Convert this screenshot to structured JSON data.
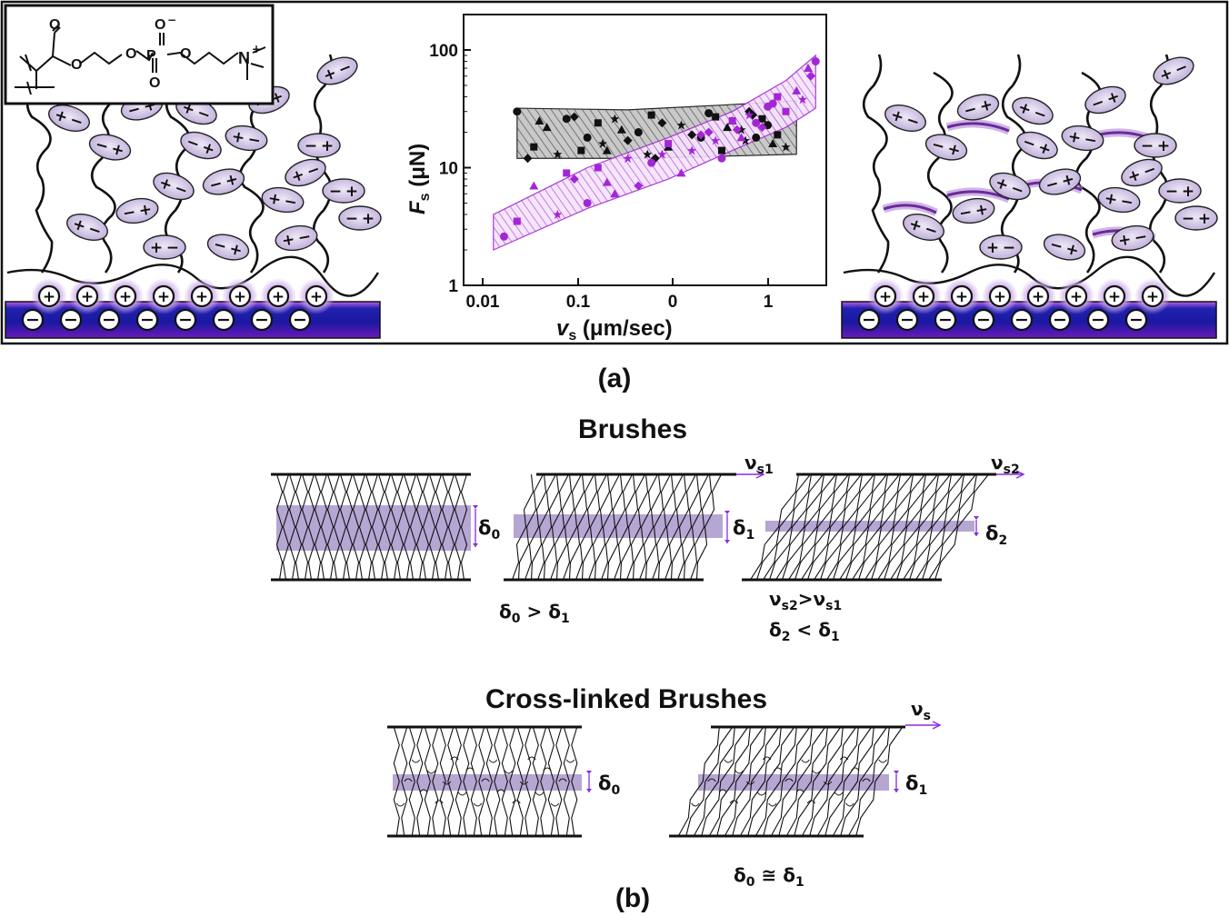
{
  "colors": {
    "purple": "#9b1fc8",
    "lavender": "#b7a3d3",
    "substrate_top": "#1a1aa0",
    "substrate_bottom": "#7a1ab8",
    "gray_hatch": "#8a8a8a",
    "ink": "#111111"
  },
  "panel_a": {
    "label": "(a)",
    "structure_label": "N",
    "charge_plus": "+",
    "charge_minus": "−",
    "oxygen_label": "O",
    "phosphorus_label": "P"
  },
  "chart_data": {
    "type": "scatter",
    "xlabel": "v",
    "xlabel_sub": "s",
    "xlabel_unit": " (μm/sec)",
    "ylabel": "F",
    "ylabel_sub": "s",
    "ylabel_unit": " (μN)",
    "x_scale": "log",
    "y_scale": "log",
    "x_ticks": [
      "0.01",
      "0.1",
      "0",
      "1"
    ],
    "y_ticks": [
      "1",
      "10",
      "100"
    ],
    "xlim": [
      0.006,
      3
    ],
    "ylim": [
      1,
      200
    ],
    "series": [
      {
        "color": "#111111",
        "hatch": "gray",
        "band": {
          "upper": [
            [
              0.015,
              32
            ],
            [
              0.1,
              31
            ],
            [
              0.5,
              34
            ],
            [
              1.8,
              37
            ]
          ],
          "lower": [
            [
              0.015,
              12
            ],
            [
              0.1,
              12
            ],
            [
              0.5,
              12.5
            ],
            [
              1.8,
              13
            ]
          ]
        },
        "x": [
          0.015,
          0.02,
          0.025,
          0.03,
          0.04,
          0.05,
          0.06,
          0.07,
          0.08,
          0.1,
          0.12,
          0.15,
          0.2,
          0.25,
          0.3,
          0.4,
          0.5,
          0.6,
          0.7,
          0.8,
          0.9,
          1.0,
          1.2,
          1.5,
          0.018,
          0.035,
          0.045,
          0.09,
          0.14,
          0.18,
          0.35,
          0.45,
          0.55,
          0.75,
          0.85,
          1.1,
          1.3,
          0.022,
          0.065,
          0.16
        ],
        "y": [
          30,
          15,
          22,
          13,
          27,
          18,
          24,
          14,
          26,
          17,
          20,
          28,
          15,
          23,
          19,
          29,
          14,
          25,
          21,
          30,
          18,
          26,
          16,
          15,
          12,
          26,
          14,
          21,
          13,
          24,
          18,
          27,
          22,
          17,
          28,
          23,
          19,
          25,
          16,
          12
        ]
      },
      {
        "color": "#a326d6",
        "hatch": "purple",
        "band": {
          "upper": [
            [
              0.01,
              4
            ],
            [
              0.05,
              10
            ],
            [
              0.2,
              18
            ],
            [
              0.6,
              30
            ],
            [
              1.5,
              55
            ],
            [
              2.5,
              90
            ]
          ],
          "lower": [
            [
              0.01,
              2
            ],
            [
              0.05,
              4.5
            ],
            [
              0.2,
              8
            ],
            [
              0.6,
              14
            ],
            [
              1.5,
              22
            ],
            [
              2.5,
              32
            ]
          ]
        },
        "x": [
          0.012,
          0.015,
          0.02,
          0.03,
          0.04,
          0.05,
          0.06,
          0.08,
          0.1,
          0.12,
          0.15,
          0.2,
          0.25,
          0.3,
          0.4,
          0.5,
          0.6,
          0.7,
          0.8,
          1.0,
          1.2,
          1.5,
          1.8,
          2.0,
          2.3,
          2.5,
          0.035,
          0.07,
          0.18,
          0.35,
          0.9,
          1.3,
          2.2,
          0.45,
          0.65,
          1.1
        ],
        "y": [
          2.6,
          3.5,
          7,
          4,
          8,
          5,
          10,
          6,
          12,
          7,
          11,
          16,
          9,
          14,
          20,
          12,
          25,
          18,
          28,
          22,
          35,
          30,
          45,
          38,
          60,
          80,
          9,
          7.5,
          13,
          19,
          24,
          40,
          70,
          17,
          21,
          33
        ]
      }
    ]
  },
  "panel_b": {
    "label": "(b)",
    "title_brushes": "Brushes",
    "title_crosslinked": "Cross-linked Brushes",
    "delta": "δ",
    "nu": "ν",
    "sub0": "0",
    "sub1": "1",
    "sub2": "2",
    "subs": "s",
    "subs1": "s1",
    "subs2": "s2",
    "gt": " > ",
    "lt": " < ",
    "approx": " ≅ ",
    "gt_tight": ">"
  }
}
